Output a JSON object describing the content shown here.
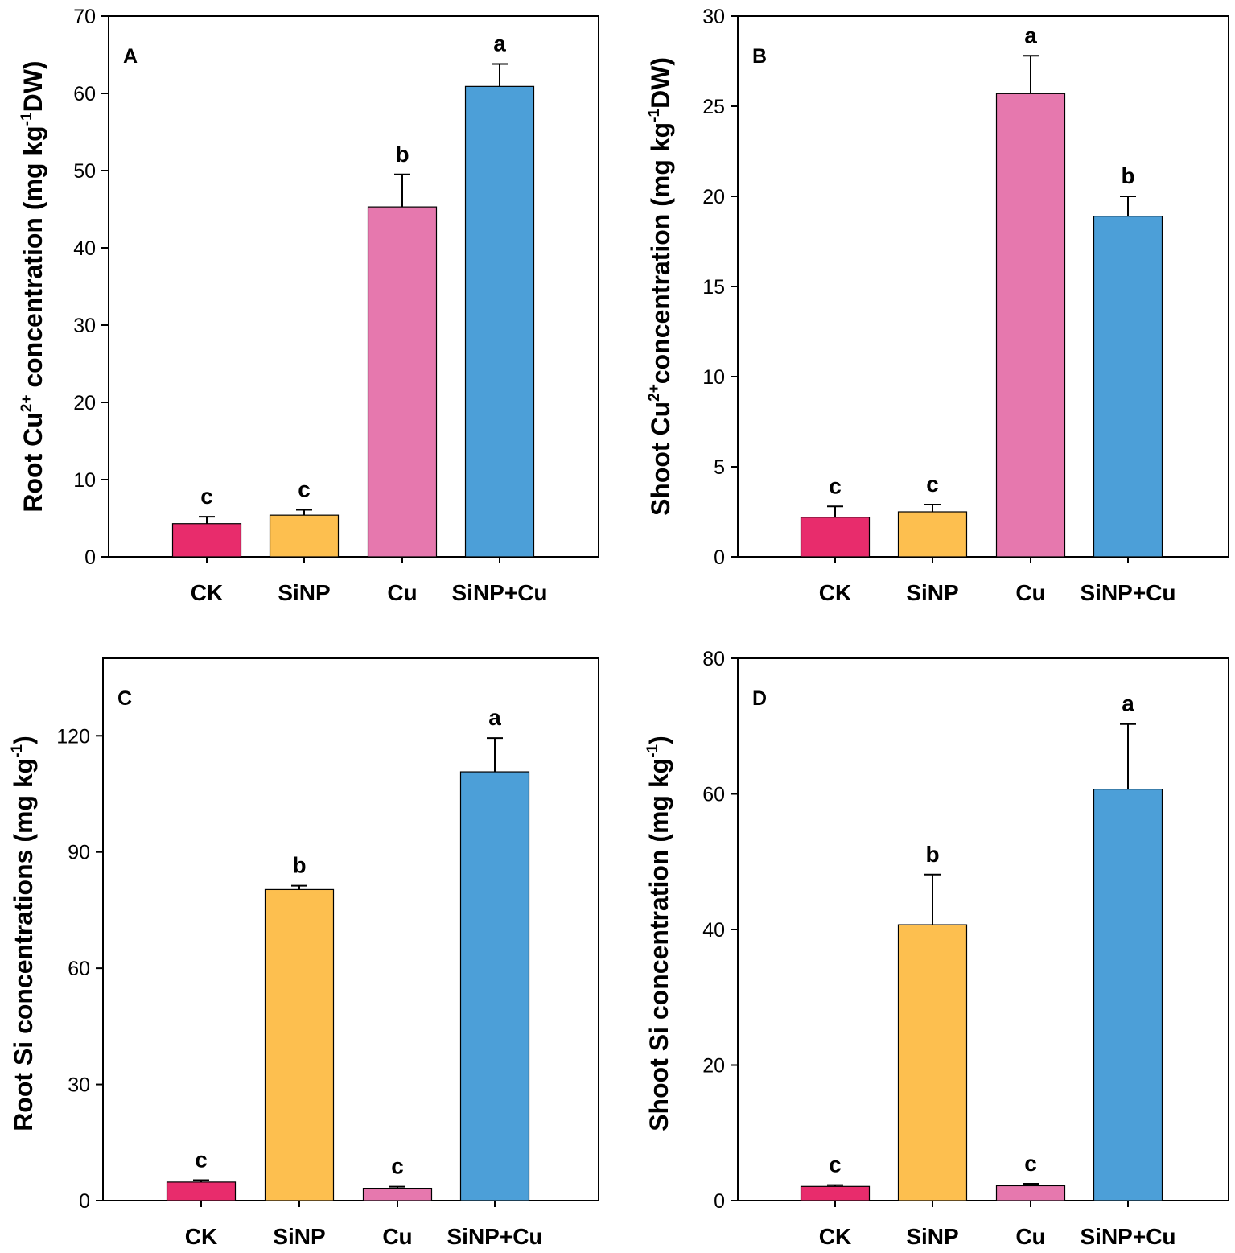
{
  "colors": {
    "CK": "#e82c6c",
    "SiNP": "#fdbf4f",
    "Cu": "#e678ae",
    "SiNP+Cu": "#4c9fd8"
  },
  "chart_data": [
    {
      "type": "bar",
      "panel": "A",
      "categories": [
        "CK",
        "SiNP",
        "Cu",
        "SiNP+Cu"
      ],
      "values": [
        4.3,
        5.4,
        45.3,
        60.9
      ],
      "errors": [
        0.9,
        0.7,
        4.2,
        2.9
      ],
      "letters": [
        "c",
        "c",
        "b",
        "a"
      ],
      "ylabel": {
        "pre": "Root Cu",
        "sup1": "2+",
        "mid": " concentration (mg kg",
        "sup2": "-1",
        "post": "DW)"
      },
      "yticks": [
        "0",
        "10",
        "20",
        "30",
        "40",
        "50",
        "60",
        "70"
      ],
      "ylim": [
        0,
        70
      ]
    },
    {
      "type": "bar",
      "panel": "B",
      "categories": [
        "CK",
        "SiNP",
        "Cu",
        "SiNP+Cu"
      ],
      "values": [
        2.2,
        2.5,
        25.7,
        18.9
      ],
      "errors": [
        0.6,
        0.4,
        2.1,
        1.1
      ],
      "letters": [
        "c",
        "c",
        "a",
        "b"
      ],
      "ylabel": {
        "pre": "Shoot Cu",
        "sup1": "2+",
        "mid": "concentration (mg kg",
        "sup2": "-1",
        "post": "DW)"
      },
      "yticks": [
        "0",
        "5",
        "10",
        "15",
        "20",
        "25",
        "30"
      ],
      "ylim": [
        0,
        30
      ]
    },
    {
      "type": "bar",
      "panel": "C",
      "categories": [
        "CK",
        "SiNP",
        "Cu",
        "SiNP+Cu"
      ],
      "values": [
        4.8,
        80.3,
        3.2,
        110.7
      ],
      "errors": [
        0.5,
        1.0,
        0.4,
        8.7
      ],
      "letters": [
        "c",
        "b",
        "c",
        "a"
      ],
      "ylabel": {
        "pre": "Root Si concentrations (mg kg",
        "sup1": "",
        "mid": "",
        "sup2": "-1",
        "post": ")"
      },
      "yticks": [
        "0",
        "30",
        "60",
        "90",
        "120"
      ],
      "ylim": [
        0,
        140
      ]
    },
    {
      "type": "bar",
      "panel": "D",
      "categories": [
        "CK",
        "SiNP",
        "Cu",
        "SiNP+Cu"
      ],
      "values": [
        2.1,
        40.7,
        2.2,
        60.7
      ],
      "errors": [
        0.2,
        7.4,
        0.3,
        9.6
      ],
      "letters": [
        "c",
        "b",
        "c",
        "a"
      ],
      "ylabel": {
        "pre": "Shoot Si concentration (mg kg",
        "sup1": "",
        "mid": "",
        "sup2": "-1",
        "post": ")"
      },
      "yticks": [
        "0",
        "20",
        "40",
        "60",
        "80"
      ],
      "ylim": [
        0,
        80
      ]
    }
  ]
}
